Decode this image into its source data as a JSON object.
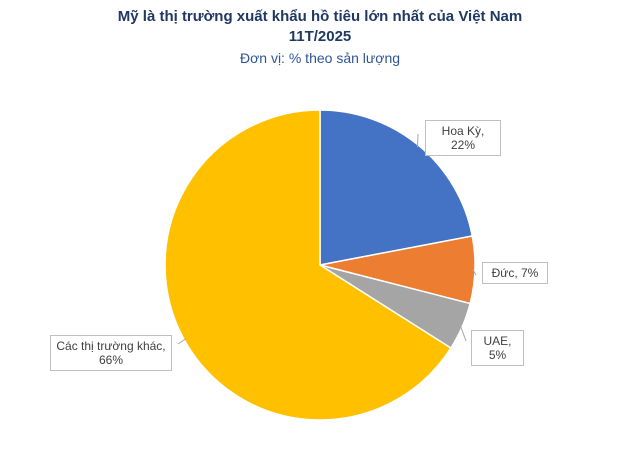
{
  "chart_data": {
    "type": "pie",
    "title": [
      "Mỹ là thị trường xuất khẩu hồ tiêu lớn nhất của Việt Nam",
      "11T/2025"
    ],
    "subtitle": "Đơn vị: % theo sản lượng",
    "values": [
      22,
      7,
      5,
      66
    ],
    "value_labels": [
      "Hoa Kỳ, 22%",
      "Đức, 7%",
      "UAE, 5%",
      "Các thị trường khác, 66%"
    ],
    "colors": [
      "#4472c4",
      "#ed7d31",
      "#a5a5a5",
      "#ffc000"
    ]
  }
}
